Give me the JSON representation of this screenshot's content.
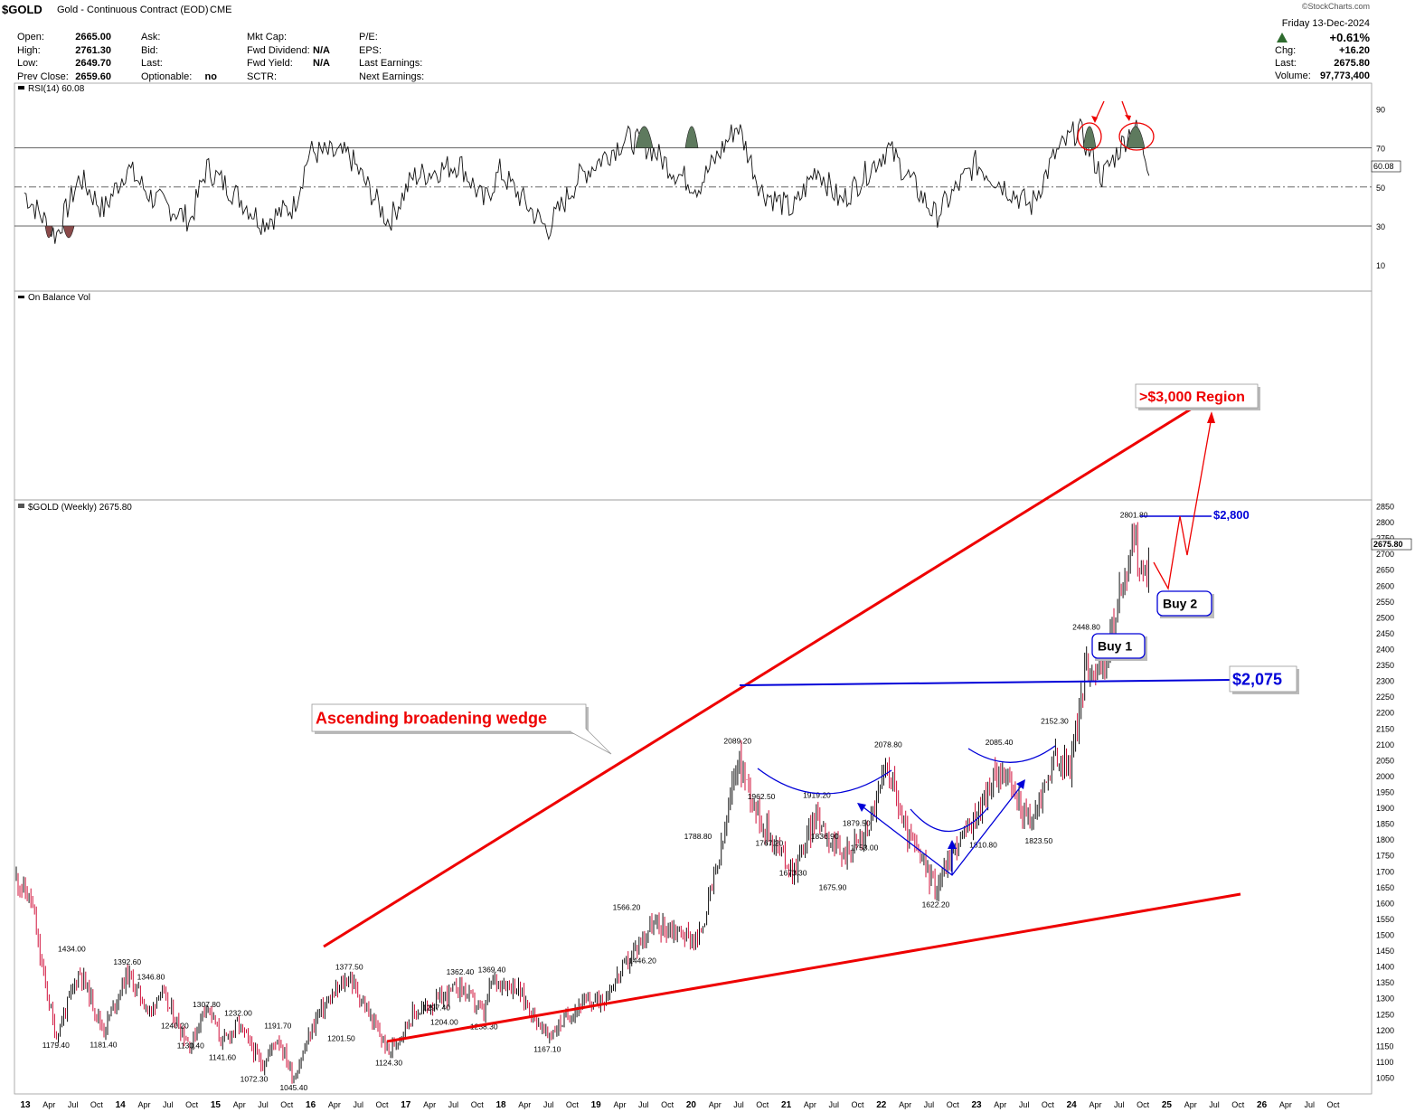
{
  "header": {
    "symbol": "$GOLD",
    "name": "Gold - Continuous Contract (EOD)",
    "exchange": "CME",
    "source": "©StockCharts.com",
    "date": "Friday  13-Dec-2024",
    "change_pct": "+0.61%",
    "chg_label": "Chg:",
    "chg_value": "+16.20",
    "last_label": "Last:",
    "last_value": "2675.80",
    "volume_label": "Volume:",
    "volume_value": "97,773,400",
    "quote": [
      {
        "label": "Open:",
        "value": "2665.00"
      },
      {
        "label": "High:",
        "value": "2761.30"
      },
      {
        "label": "Low:",
        "value": "2649.70"
      },
      {
        "label": "Prev Close:",
        "value": "2659.60"
      }
    ],
    "quote2": [
      {
        "label": "Ask:",
        "value": ""
      },
      {
        "label": "Bid:",
        "value": ""
      },
      {
        "label": "Last:",
        "value": ""
      },
      {
        "label": "Optionable:",
        "value": "no"
      }
    ],
    "quote3": [
      {
        "label": "Mkt Cap:",
        "value": ""
      },
      {
        "label": "Fwd Dividend:",
        "value": "N/A"
      },
      {
        "label": "Fwd Yield:",
        "value": "N/A"
      },
      {
        "label": "SCTR:",
        "value": ""
      }
    ],
    "quote4": [
      {
        "label": "P/E:",
        "value": ""
      },
      {
        "label": "EPS:",
        "value": ""
      },
      {
        "label": "Last Earnings:",
        "value": ""
      },
      {
        "label": "Next Earnings:",
        "value": ""
      }
    ]
  },
  "rsi_panel": {
    "label": "RSI(14) 60.08",
    "current": "60.08",
    "ticks": [
      "90",
      "70",
      "50",
      "30",
      "10"
    ],
    "levels": [
      90,
      70,
      50,
      30,
      10
    ]
  },
  "obv_panel": {
    "label": "On Balance Vol"
  },
  "price_panel": {
    "label": "$GOLD (Weekly) 2675.80",
    "current": "2675.80",
    "ticks": [
      2850,
      2800,
      2750,
      2700,
      2650,
      2600,
      2550,
      2500,
      2450,
      2400,
      2350,
      2300,
      2250,
      2200,
      2150,
      2100,
      2050,
      2000,
      1950,
      1900,
      1850,
      1800,
      1750,
      1700,
      1650,
      1600,
      1550,
      1500,
      1450,
      1400,
      1350,
      1300,
      1250,
      1200,
      1150,
      1100,
      1050
    ]
  },
  "x_axis": [
    "13",
    "Apr",
    "Jul",
    "Oct",
    "14",
    "Apr",
    "Jul",
    "Oct",
    "15",
    "Apr",
    "Jul",
    "Oct",
    "16",
    "Apr",
    "Jul",
    "Oct",
    "17",
    "Apr",
    "Jul",
    "Oct",
    "18",
    "Apr",
    "Jul",
    "Oct",
    "19",
    "Apr",
    "Jul",
    "Oct",
    "20",
    "Apr",
    "Jul",
    "Oct",
    "21",
    "Apr",
    "Jul",
    "Oct",
    "22",
    "Apr",
    "Jul",
    "Oct",
    "23",
    "Apr",
    "Jul",
    "Oct",
    "24",
    "Apr",
    "Jul",
    "Oct",
    "25",
    "Apr",
    "Jul",
    "Oct",
    "26",
    "Apr",
    "Jul",
    "Oct"
  ],
  "annotations": {
    "wedge": "Ascending broadening wedge",
    "region": ">$3,000 Region",
    "level_2800": "$2,800",
    "level_2075": "$2,075",
    "buy1": "Buy 1",
    "buy2": "Buy 2"
  },
  "chart_data": {
    "type": "line",
    "title": "$GOLD (Weekly) 2675.80",
    "series": [
      {
        "name": "Weekly close (approx.)",
        "points": [
          [
            "2013-01",
            1680
          ],
          [
            "2013-03",
            1600
          ],
          [
            "2013-04",
            1430
          ],
          [
            "2013-06",
            1180
          ],
          [
            "2013-09",
            1390
          ],
          [
            "2013-12",
            1200
          ],
          [
            "2014-03",
            1380
          ],
          [
            "2014-06",
            1250
          ],
          [
            "2014-07",
            1330
          ],
          [
            "2014-11",
            1150
          ],
          [
            "2015-01",
            1290
          ],
          [
            "2015-03",
            1160
          ],
          [
            "2015-05",
            1220
          ],
          [
            "2015-08",
            1090
          ],
          [
            "2015-10",
            1180
          ],
          [
            "2015-12",
            1050
          ],
          [
            "2016-03",
            1250
          ],
          [
            "2016-07",
            1370
          ],
          [
            "2016-12",
            1130
          ],
          [
            "2017-03",
            1250
          ],
          [
            "2017-06",
            1290
          ],
          [
            "2017-09",
            1340
          ],
          [
            "2017-12",
            1250
          ],
          [
            "2018-01",
            1360
          ],
          [
            "2018-04",
            1340
          ],
          [
            "2018-08",
            1180
          ],
          [
            "2018-12",
            1280
          ],
          [
            "2019-03",
            1300
          ],
          [
            "2019-06",
            1410
          ],
          [
            "2019-09",
            1530
          ],
          [
            "2019-12",
            1520
          ],
          [
            "2020-03",
            1480
          ],
          [
            "2020-06",
            1770
          ],
          [
            "2020-08",
            2060
          ],
          [
            "2020-11",
            1860
          ],
          [
            "2021-03",
            1700
          ],
          [
            "2021-06",
            1880
          ],
          [
            "2021-09",
            1750
          ],
          [
            "2021-12",
            1810
          ],
          [
            "2022-03",
            2040
          ],
          [
            "2022-05",
            1840
          ],
          [
            "2022-09",
            1650
          ],
          [
            "2022-11",
            1760
          ],
          [
            "2023-02",
            1870
          ],
          [
            "2023-05",
            2030
          ],
          [
            "2023-09",
            1850
          ],
          [
            "2023-12",
            2060
          ],
          [
            "2024-02",
            2030
          ],
          [
            "2024-04",
            2350
          ],
          [
            "2024-06",
            2330
          ],
          [
            "2024-09",
            2650
          ],
          [
            "2024-10",
            2760
          ],
          [
            "2024-11",
            2620
          ],
          [
            "2024-12",
            2675.8
          ]
        ]
      },
      {
        "name": "RSI(14) (approx.)",
        "points": [
          [
            "2013-02",
            47
          ],
          [
            "2013-06",
            25
          ],
          [
            "2013-09",
            55
          ],
          [
            "2013-12",
            38
          ],
          [
            "2014-03",
            60
          ],
          [
            "2014-06",
            45
          ],
          [
            "2014-11",
            33
          ],
          [
            "2015-01",
            60
          ],
          [
            "2015-05",
            45
          ],
          [
            "2015-08",
            32
          ],
          [
            "2015-12",
            40
          ],
          [
            "2016-02",
            68
          ],
          [
            "2016-07",
            66
          ],
          [
            "2016-12",
            32
          ],
          [
            "2017-03",
            55
          ],
          [
            "2017-09",
            62
          ],
          [
            "2017-12",
            42
          ],
          [
            "2018-02",
            58
          ],
          [
            "2018-08",
            28
          ],
          [
            "2018-12",
            55
          ],
          [
            "2019-06",
            75
          ],
          [
            "2019-09",
            70
          ],
          [
            "2019-12",
            58
          ],
          [
            "2020-03",
            50
          ],
          [
            "2020-08",
            82
          ],
          [
            "2020-11",
            48
          ],
          [
            "2021-03",
            38
          ],
          [
            "2021-06",
            60
          ],
          [
            "2021-09",
            42
          ],
          [
            "2022-03",
            70
          ],
          [
            "2022-09",
            35
          ],
          [
            "2023-02",
            62
          ],
          [
            "2023-09",
            40
          ],
          [
            "2023-12",
            66
          ],
          [
            "2024-03",
            80
          ],
          [
            "2024-06",
            55
          ],
          [
            "2024-10",
            82
          ],
          [
            "2024-12",
            60.08
          ]
        ]
      }
    ],
    "labeled_points": [
      {
        "x": "2013-06",
        "value": 1179.4
      },
      {
        "x": "2013-08",
        "value": 1434.0
      },
      {
        "x": "2013-12",
        "value": 1181.4
      },
      {
        "x": "2014-03",
        "value": 1392.6
      },
      {
        "x": "2014-06",
        "value": 1346.8
      },
      {
        "x": "2014-09",
        "value": 1240.2
      },
      {
        "x": "2014-11",
        "value": 1130.4
      },
      {
        "x": "2015-01",
        "value": 1307.8
      },
      {
        "x": "2015-03",
        "value": 1141.6
      },
      {
        "x": "2015-05",
        "value": 1232.0
      },
      {
        "x": "2015-07",
        "value": 1072.3
      },
      {
        "x": "2015-10",
        "value": 1191.7
      },
      {
        "x": "2015-12",
        "value": 1045.4
      },
      {
        "x": "2016-06",
        "value": 1201.5
      },
      {
        "x": "2016-07",
        "value": 1377.5
      },
      {
        "x": "2016-12",
        "value": 1124.3
      },
      {
        "x": "2017-06",
        "value": 1297.4
      },
      {
        "x": "2017-07",
        "value": 1204.0
      },
      {
        "x": "2017-09",
        "value": 1362.4
      },
      {
        "x": "2017-12",
        "value": 1238.3
      },
      {
        "x": "2018-01",
        "value": 1369.4
      },
      {
        "x": "2018-08",
        "value": 1167.1
      },
      {
        "x": "2019-06",
        "value": 1566.2
      },
      {
        "x": "2019-08",
        "value": 1446.2
      },
      {
        "x": "2020-03",
        "value": 1788.8
      },
      {
        "x": "2020-08",
        "value": 2089.2
      },
      {
        "x": "2020-11",
        "value": 1962.5
      },
      {
        "x": "2020-12",
        "value": 1767.2
      },
      {
        "x": "2021-03",
        "value": 1673.3
      },
      {
        "x": "2021-06",
        "value": 1919.2
      },
      {
        "x": "2021-07",
        "value": 1836.9
      },
      {
        "x": "2021-08",
        "value": 1675.9
      },
      {
        "x": "2021-11",
        "value": 1879.5
      },
      {
        "x": "2021-12",
        "value": 1753.0
      },
      {
        "x": "2022-03",
        "value": 2078.8
      },
      {
        "x": "2022-09",
        "value": 1622.2
      },
      {
        "x": "2023-03",
        "value": 1810.8
      },
      {
        "x": "2023-05",
        "value": 2085.4
      },
      {
        "x": "2023-10",
        "value": 1823.5
      },
      {
        "x": "2023-12",
        "value": 2152.3
      },
      {
        "x": "2024-04",
        "value": 2448.8
      },
      {
        "x": "2024-10",
        "value": 2801.8
      }
    ],
    "lines": [
      {
        "name": "Wedge upper",
        "from": [
          "2016-02",
          1320
        ],
        "to": [
          "2025-03",
          2970
        ]
      },
      {
        "name": "Wedge lower",
        "from": [
          "2016-12",
          1120
        ],
        "to": [
          "2025-07",
          1450
        ]
      },
      {
        "name": "$2,075 neckline",
        "from": [
          "2020-08",
          2085
        ],
        "to": [
          "2025-09",
          2105
        ]
      },
      {
        "name": "$2,800 level",
        "from": [
          "2024-10",
          2801.8
        ],
        "to": [
          "2025-02",
          2801.8
        ]
      }
    ],
    "xlabel": "",
    "ylabel": "",
    "ylim": [
      1050,
      2850
    ],
    "rsi_ylim": [
      0,
      100
    ]
  }
}
